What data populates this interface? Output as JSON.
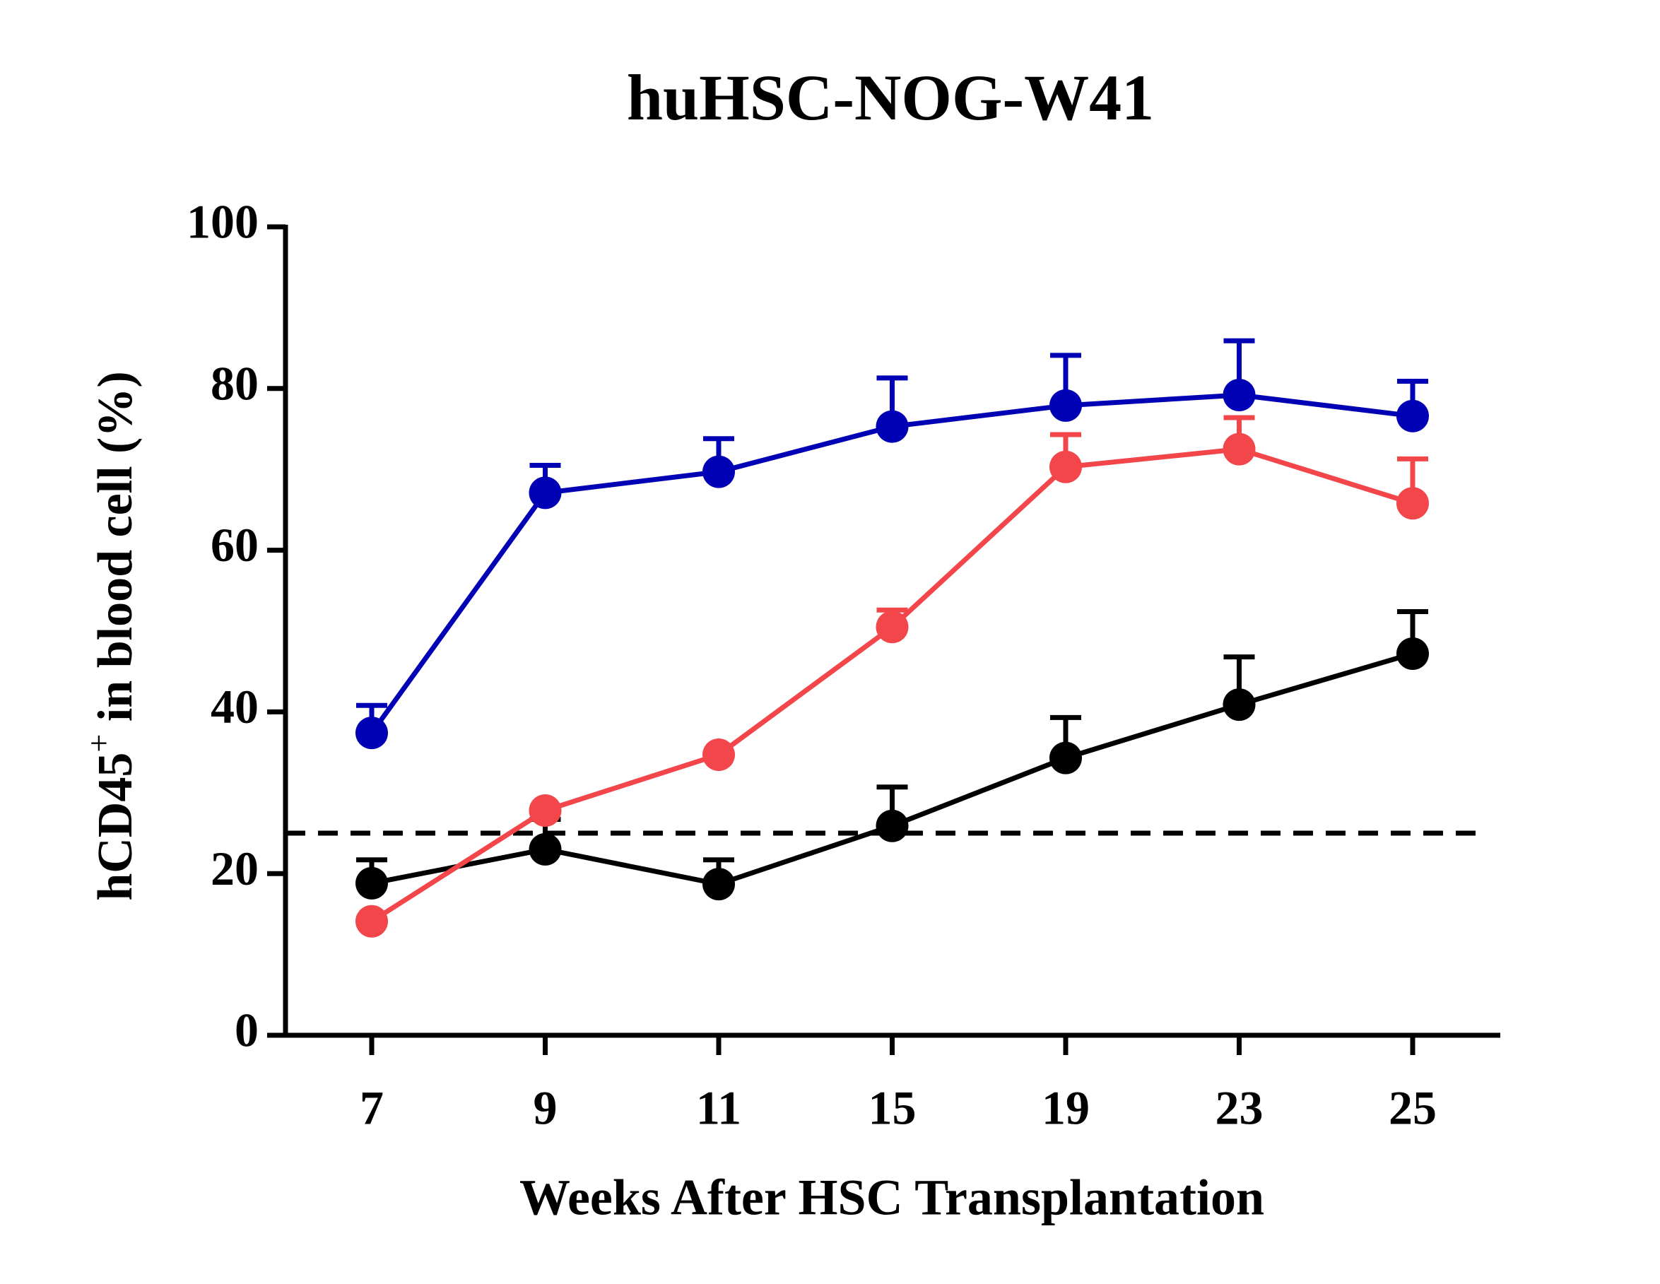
{
  "chart_data": {
    "type": "line",
    "title": "huHSC-NOG-W41",
    "x_label": "Weeks After HSC Transplantation",
    "y_label": {
      "text": "hCD45",
      "sup": "+",
      "rest": " in blood cell (%)"
    },
    "categories": [
      "7",
      "9",
      "11",
      "15",
      "19",
      "23",
      "25"
    ],
    "ylim": [
      0,
      100
    ],
    "yticks": [
      0,
      20,
      40,
      60,
      80,
      100
    ],
    "reference_line": 25,
    "series": [
      {
        "color": "#000000",
        "values": [
          18.8,
          23.0,
          18.7,
          25.9,
          34.3,
          40.9,
          47.2
        ],
        "errors": [
          2.9,
          3.7,
          3.0,
          4.8,
          5.0,
          5.9,
          5.2
        ]
      },
      {
        "color": "#f2464a",
        "values": [
          14.1,
          27.8,
          34.7,
          50.5,
          70.3,
          72.5,
          65.8
        ],
        "errors": [
          0,
          0,
          0,
          2.1,
          4.0,
          3.9,
          5.5
        ]
      },
      {
        "color": "#0000b4",
        "values": [
          37.4,
          67.1,
          69.7,
          75.3,
          77.9,
          79.2,
          76.6
        ],
        "errors": [
          3.4,
          3.4,
          4.1,
          6.0,
          6.2,
          6.7,
          4.3
        ]
      }
    ]
  }
}
